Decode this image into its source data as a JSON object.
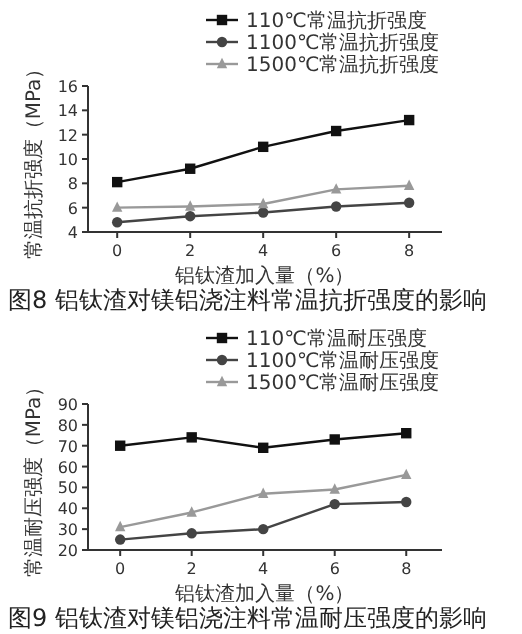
{
  "chart_data": [
    {
      "type": "line",
      "title": "图8  铝钛渣对镁铝浇注料常温抗折强度的影响",
      "xlabel": "铝钛渣加入量（%）",
      "ylabel": "常温抗折强度（MPa）",
      "x": [
        0,
        2,
        4,
        6,
        8
      ],
      "xlim": [
        -0.8,
        8.9
      ],
      "xticks": [
        0,
        2,
        4,
        6,
        8
      ],
      "ylim": [
        4,
        16
      ],
      "yticks": [
        4,
        6,
        8,
        10,
        12,
        14,
        16
      ],
      "legend": "top right",
      "grid": false,
      "series": [
        {
          "name": "110℃常温抗折强度",
          "color": "#111111",
          "marker": "square",
          "values": [
            8.1,
            9.2,
            11.0,
            12.3,
            13.2
          ]
        },
        {
          "name": "1100℃常温抗折强度",
          "color": "#444444",
          "marker": "circle",
          "values": [
            4.8,
            5.3,
            5.6,
            6.1,
            6.4
          ]
        },
        {
          "name": "1500℃常温抗折强度",
          "color": "#999999",
          "marker": "triangle",
          "values": [
            6.0,
            6.1,
            6.3,
            7.5,
            7.8
          ]
        }
      ]
    },
    {
      "type": "line",
      "title": "图9  铝钛渣对镁铝浇注料常温耐压强度的影响",
      "xlabel": "铝钛渣加入量（%）",
      "ylabel": "常温耐压强度（MPa）",
      "x": [
        0,
        2,
        4,
        6,
        8
      ],
      "xlim": [
        -0.9,
        9
      ],
      "xticks": [
        0,
        2,
        4,
        6,
        8
      ],
      "ylim": [
        20,
        90
      ],
      "yticks": [
        20,
        30,
        40,
        50,
        60,
        70,
        80,
        90
      ],
      "legend": "top right",
      "grid": false,
      "series": [
        {
          "name": "110℃常温耐压强度",
          "color": "#111111",
          "marker": "square",
          "values": [
            70,
            74,
            69,
            73,
            76
          ]
        },
        {
          "name": "1100℃常温耐压强度",
          "color": "#444444",
          "marker": "circle",
          "values": [
            25,
            28,
            30,
            42,
            43
          ]
        },
        {
          "name": "1500℃常温耐压强度",
          "color": "#999999",
          "marker": "triangle",
          "values": [
            31,
            38,
            47,
            49,
            56
          ]
        }
      ]
    }
  ]
}
